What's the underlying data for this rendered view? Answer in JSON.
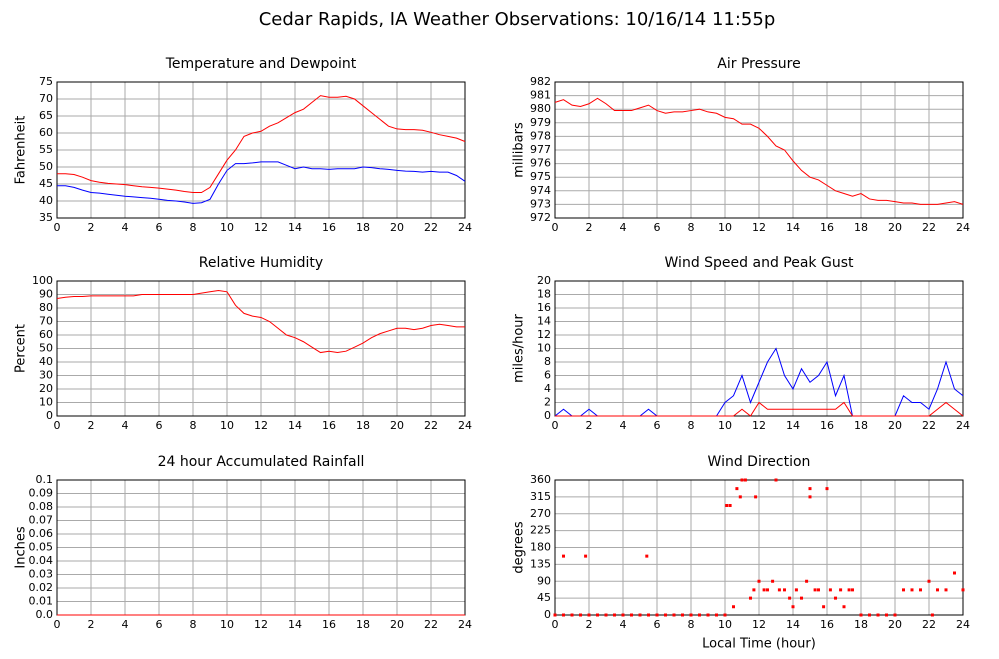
{
  "title": "Cedar Rapids, IA Weather Observations: 10/16/14 11:55p",
  "chart_data": [
    {
      "type": "line",
      "title": "Temperature and Dewpoint",
      "y_label": "Fahrenheit",
      "x": [
        0,
        0.5,
        1,
        1.5,
        2,
        2.5,
        3,
        3.5,
        4,
        4.5,
        5,
        5.5,
        6,
        6.5,
        7,
        7.5,
        8,
        8.5,
        9,
        9.5,
        10,
        10.5,
        11,
        11.5,
        12,
        12.5,
        13,
        13.5,
        14,
        14.5,
        15,
        15.5,
        16,
        16.5,
        17,
        17.5,
        18,
        18.5,
        19,
        19.5,
        20,
        20.5,
        21,
        21.5,
        22,
        22.5,
        23,
        23.5,
        24
      ],
      "series": [
        {
          "color": "#ff0000",
          "values": [
            48,
            48,
            47.8,
            47,
            46,
            45.5,
            45.2,
            45,
            44.8,
            44.5,
            44.2,
            44,
            43.8,
            43.5,
            43.2,
            42.8,
            42.5,
            42.5,
            44,
            48,
            52,
            55,
            59,
            60,
            60.5,
            62,
            63,
            64.5,
            66,
            67,
            69,
            71,
            70.5,
            70.5,
            70.8,
            70,
            68,
            66,
            64,
            62,
            61.2,
            61,
            61,
            60.8,
            60.2,
            59.5,
            59,
            58.5,
            57.5
          ]
        },
        {
          "color": "#0000ff",
          "values": [
            44.5,
            44.5,
            44,
            43.2,
            42.5,
            42.3,
            42,
            41.7,
            41.4,
            41.2,
            41,
            40.8,
            40.5,
            40.2,
            40,
            39.7,
            39.3,
            39.5,
            40.5,
            45,
            49,
            51,
            51,
            51.2,
            51.5,
            51.5,
            51.5,
            50.5,
            49.5,
            50,
            49.5,
            49.5,
            49.3,
            49.5,
            49.5,
            49.5,
            50,
            49.8,
            49.5,
            49.3,
            49,
            48.8,
            48.7,
            48.5,
            48.7,
            48.5,
            48.5,
            47.5,
            45.8
          ]
        }
      ],
      "xlim": [
        0,
        24
      ],
      "xticks": [
        0,
        2,
        4,
        6,
        8,
        10,
        12,
        14,
        16,
        18,
        20,
        22,
        24
      ],
      "ylim": [
        35,
        75
      ],
      "yticks": [
        35,
        40,
        45,
        50,
        55,
        60,
        65,
        70,
        75
      ],
      "grid": true
    },
    {
      "type": "line",
      "title": "Air Pressure",
      "y_label": "millibars",
      "x": [
        0,
        0.5,
        1,
        1.5,
        2,
        2.5,
        3,
        3.5,
        4,
        4.5,
        5,
        5.5,
        6,
        6.5,
        7,
        7.5,
        8,
        8.5,
        9,
        9.5,
        10,
        10.5,
        11,
        11.5,
        12,
        12.5,
        13,
        13.5,
        14,
        14.5,
        15,
        15.5,
        16,
        16.5,
        17,
        17.5,
        18,
        18.5,
        19,
        19.5,
        20,
        20.5,
        21,
        21.5,
        22,
        22.5,
        23,
        23.5,
        24
      ],
      "series": [
        {
          "color": "#ff0000",
          "values": [
            980.5,
            980.7,
            980.3,
            980.2,
            980.4,
            980.8,
            980.4,
            979.9,
            979.9,
            979.9,
            980.1,
            980.3,
            979.9,
            979.7,
            979.8,
            979.8,
            979.9,
            980,
            979.8,
            979.7,
            979.4,
            979.3,
            978.9,
            978.9,
            978.6,
            978,
            977.3,
            977,
            976.2,
            975.5,
            975,
            974.8,
            974.4,
            974,
            973.8,
            973.6,
            973.8,
            973.4,
            973.3,
            973.3,
            973.2,
            973.1,
            973.1,
            973,
            973,
            973,
            973.1,
            973.2,
            973
          ]
        }
      ],
      "xlim": [
        0,
        24
      ],
      "xticks": [
        0,
        2,
        4,
        6,
        8,
        10,
        12,
        14,
        16,
        18,
        20,
        22,
        24
      ],
      "ylim": [
        972,
        982
      ],
      "yticks": [
        972,
        973,
        974,
        975,
        976,
        977,
        978,
        979,
        980,
        981,
        982
      ],
      "grid": true
    },
    {
      "type": "line",
      "title": "Relative Humidity",
      "y_label": "Percent",
      "x": [
        0,
        0.5,
        1,
        1.5,
        2,
        2.5,
        3,
        3.5,
        4,
        4.5,
        5,
        5.5,
        6,
        6.5,
        7,
        7.5,
        8,
        8.5,
        9,
        9.5,
        10,
        10.5,
        11,
        11.5,
        12,
        12.5,
        13,
        13.5,
        14,
        14.5,
        15,
        15.5,
        16,
        16.5,
        17,
        17.5,
        18,
        18.5,
        19,
        19.5,
        20,
        20.5,
        21,
        21.5,
        22,
        22.5,
        23,
        23.5,
        24
      ],
      "series": [
        {
          "color": "#ff0000",
          "values": [
            87,
            88,
            88.5,
            88.5,
            89,
            89,
            89,
            89,
            89,
            89,
            90,
            90,
            90,
            90,
            90,
            90,
            90,
            91,
            92,
            93,
            92,
            82,
            76,
            74,
            73,
            70,
            65,
            60,
            58,
            55,
            51,
            47,
            48,
            47,
            48,
            51,
            54,
            58,
            61,
            63,
            65,
            65,
            64,
            65,
            67,
            68,
            67,
            66,
            66
          ]
        }
      ],
      "xlim": [
        0,
        24
      ],
      "xticks": [
        0,
        2,
        4,
        6,
        8,
        10,
        12,
        14,
        16,
        18,
        20,
        22,
        24
      ],
      "ylim": [
        0,
        100
      ],
      "yticks": [
        0,
        10,
        20,
        30,
        40,
        50,
        60,
        70,
        80,
        90,
        100
      ],
      "grid": true
    },
    {
      "type": "line",
      "title": "Wind Speed and Peak Gust",
      "y_label": "miles/hour",
      "x": [
        0,
        0.5,
        1,
        1.5,
        2,
        2.5,
        3,
        3.5,
        4,
        4.5,
        5,
        5.5,
        6,
        6.5,
        7,
        7.5,
        8,
        8.5,
        9,
        9.5,
        10,
        10.5,
        11,
        11.5,
        12,
        12.5,
        13,
        13.5,
        14,
        14.5,
        15,
        15.5,
        16,
        16.5,
        17,
        17.5,
        18,
        18.5,
        19,
        19.5,
        20,
        20.5,
        21,
        21.5,
        22,
        22.5,
        23,
        23.5,
        24
      ],
      "series": [
        {
          "color": "#0000ff",
          "values": [
            0,
            1,
            0,
            0,
            1,
            0,
            0,
            0,
            0,
            0,
            0,
            1,
            0,
            0,
            0,
            0,
            0,
            0,
            0,
            0,
            2,
            3,
            6,
            2,
            5,
            8,
            10,
            6,
            4,
            7,
            5,
            6,
            8,
            3,
            6,
            0,
            0,
            0,
            0,
            0,
            0,
            3,
            2,
            2,
            1,
            4,
            8,
            4,
            3
          ]
        },
        {
          "color": "#ff0000",
          "values": [
            0,
            0,
            0,
            0,
            0,
            0,
            0,
            0,
            0,
            0,
            0,
            0,
            0,
            0,
            0,
            0,
            0,
            0,
            0,
            0,
            0,
            0,
            1,
            0,
            2,
            1,
            1,
            1,
            1,
            1,
            1,
            1,
            1,
            1,
            2,
            0,
            0,
            0,
            0,
            0,
            0,
            0,
            0,
            0,
            0,
            1,
            2,
            1,
            0
          ]
        }
      ],
      "xlim": [
        0,
        24
      ],
      "xticks": [
        0,
        2,
        4,
        6,
        8,
        10,
        12,
        14,
        16,
        18,
        20,
        22,
        24
      ],
      "ylim": [
        0,
        20
      ],
      "yticks": [
        0,
        2,
        4,
        6,
        8,
        10,
        12,
        14,
        16,
        18,
        20
      ],
      "grid": true
    },
    {
      "type": "line",
      "title": "24 hour Accumulated Rainfall",
      "y_label": "Inches",
      "x": [
        0,
        24
      ],
      "series": [
        {
          "color": "#ff0000",
          "values": [
            0,
            0
          ]
        }
      ],
      "xlim": [
        0,
        24
      ],
      "xticks": [
        0,
        2,
        4,
        6,
        8,
        10,
        12,
        14,
        16,
        18,
        20,
        22,
        24
      ],
      "ylim": [
        0,
        0.1
      ],
      "yticks": [
        {
          "value": 0,
          "label": "0.0"
        },
        0.01,
        0.02,
        0.03,
        0.04,
        0.05,
        0.06,
        0.07,
        0.08,
        0.09,
        0.1
      ],
      "grid": true
    },
    {
      "type": "scatter",
      "title": "Wind Direction",
      "y_label": "degrees",
      "x_label": "Local Time (hour)",
      "x": [
        0,
        0.5,
        0.5,
        1,
        1.5,
        1.8,
        2,
        2.5,
        3,
        3.5,
        4,
        4.5,
        5,
        5.4,
        5.5,
        6,
        6.5,
        7,
        7.5,
        8,
        8.5,
        9,
        9.5,
        10,
        10.1,
        10.3,
        10.5,
        10.7,
        10.9,
        11,
        11.2,
        11.5,
        11.7,
        11.8,
        12,
        12.3,
        12.5,
        12.8,
        13,
        13.2,
        13.5,
        13.8,
        14,
        14.2,
        14.5,
        14.8,
        15,
        15,
        15.3,
        15.5,
        15.8,
        16,
        16.2,
        16.5,
        16.8,
        17,
        17.3,
        17.5,
        18,
        18.5,
        19,
        19.5,
        20,
        20.5,
        21,
        21.5,
        22,
        22.2,
        22.5,
        23,
        23.5,
        24
      ],
      "series": [
        {
          "color": "#ff0000",
          "values": [
            0,
            0,
            157,
            0,
            0,
            157,
            0,
            0,
            0,
            0,
            0,
            0,
            0,
            157,
            0,
            0,
            0,
            0,
            0,
            0,
            0,
            0,
            0,
            0,
            292,
            292,
            22,
            337,
            315,
            360,
            360,
            45,
            67,
            315,
            90,
            67,
            67,
            90,
            360,
            67,
            67,
            45,
            22,
            67,
            45,
            90,
            337,
            315,
            67,
            67,
            22,
            337,
            67,
            45,
            67,
            22,
            67,
            67,
            0,
            0,
            0,
            0,
            0,
            67,
            67,
            67,
            90,
            0,
            67,
            67,
            112,
            67
          ]
        }
      ],
      "xlim": [
        0,
        24
      ],
      "xticks": [
        0,
        2,
        4,
        6,
        8,
        10,
        12,
        14,
        16,
        18,
        20,
        22,
        24
      ],
      "ylim": [
        0,
        360
      ],
      "yticks": [
        0,
        45,
        90,
        135,
        180,
        225,
        270,
        315,
        360
      ],
      "grid": true
    }
  ]
}
